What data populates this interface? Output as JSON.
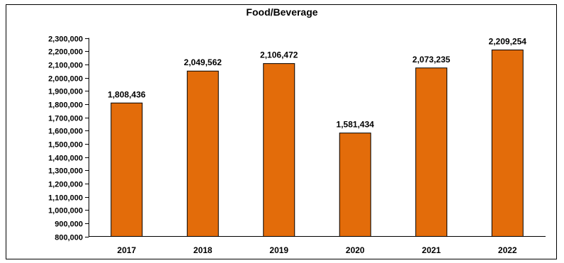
{
  "chart_data": {
    "type": "bar",
    "title": "Food/Beverage",
    "categories": [
      "2017",
      "2018",
      "2019",
      "2020",
      "2021",
      "2022"
    ],
    "values": [
      1808436,
      2049562,
      2106472,
      1581434,
      2073235,
      2209254
    ],
    "data_labels": [
      "1,808,436",
      "2,049,562",
      "2,106,472",
      "1,581,434",
      "2,073,235",
      "2,209,254"
    ],
    "ylim": [
      800000,
      2300000
    ],
    "yticks": [
      800000,
      900000,
      1000000,
      1100000,
      1200000,
      1300000,
      1400000,
      1500000,
      1600000,
      1700000,
      1800000,
      1900000,
      2000000,
      2100000,
      2200000,
      2300000
    ],
    "ytick_labels": [
      "800,000",
      "900,000",
      "1,000,000",
      "1,100,000",
      "1,200,000",
      "1,300,000",
      "1,400,000",
      "1,500,000",
      "1,600,000",
      "1,700,000",
      "1,800,000",
      "1,900,000",
      "2,000,000",
      "2,100,000",
      "2,200,000",
      "2,300,000"
    ],
    "grid": false,
    "legend": "none",
    "colors": {
      "bar": "#E36C0A",
      "bar_edge": "#000000",
      "axis": "#000000"
    }
  }
}
